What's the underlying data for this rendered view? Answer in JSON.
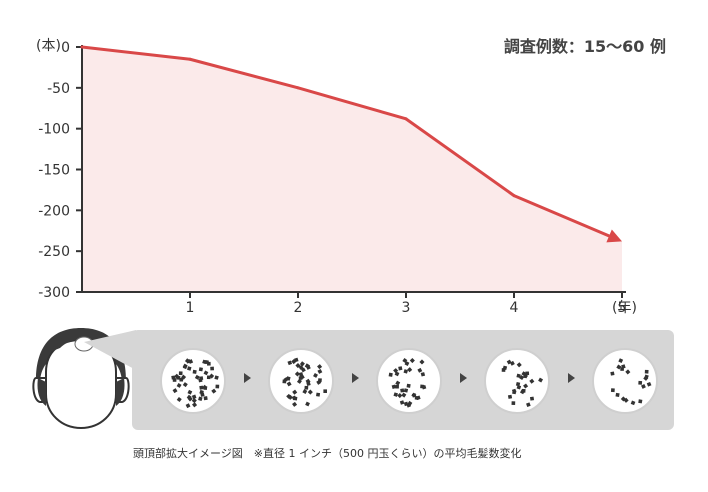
{
  "chart_data": {
    "type": "line",
    "x": [
      0,
      1,
      2,
      3,
      4,
      5
    ],
    "series": [
      {
        "values": [
          0,
          -15,
          -50,
          -88,
          -182,
          -238
        ]
      }
    ],
    "xticks": [
      "1",
      "2",
      "3",
      "4",
      "5"
    ],
    "yticks": [
      "0",
      "-50",
      "-100",
      "-150",
      "-200",
      "-250",
      "-300"
    ],
    "ylim": [
      -300,
      0
    ],
    "xlim": [
      0,
      5
    ],
    "y_unit": "(本)",
    "x_unit": "(年)",
    "annotation": "調査例数：15～60 例",
    "line_color": "#d94848",
    "fill_color": "#fbeaea"
  },
  "caption": "頭頂部拡大イメージ図　※直径 1 インチ（500 円玉くらい）の平均毛髪数変化",
  "illustration": {
    "icons": [
      "head-icon",
      "scalp-circle-icon",
      "arrow-right-icon"
    ],
    "hair_density_stages": [
      46,
      38,
      31,
      24,
      18
    ]
  }
}
